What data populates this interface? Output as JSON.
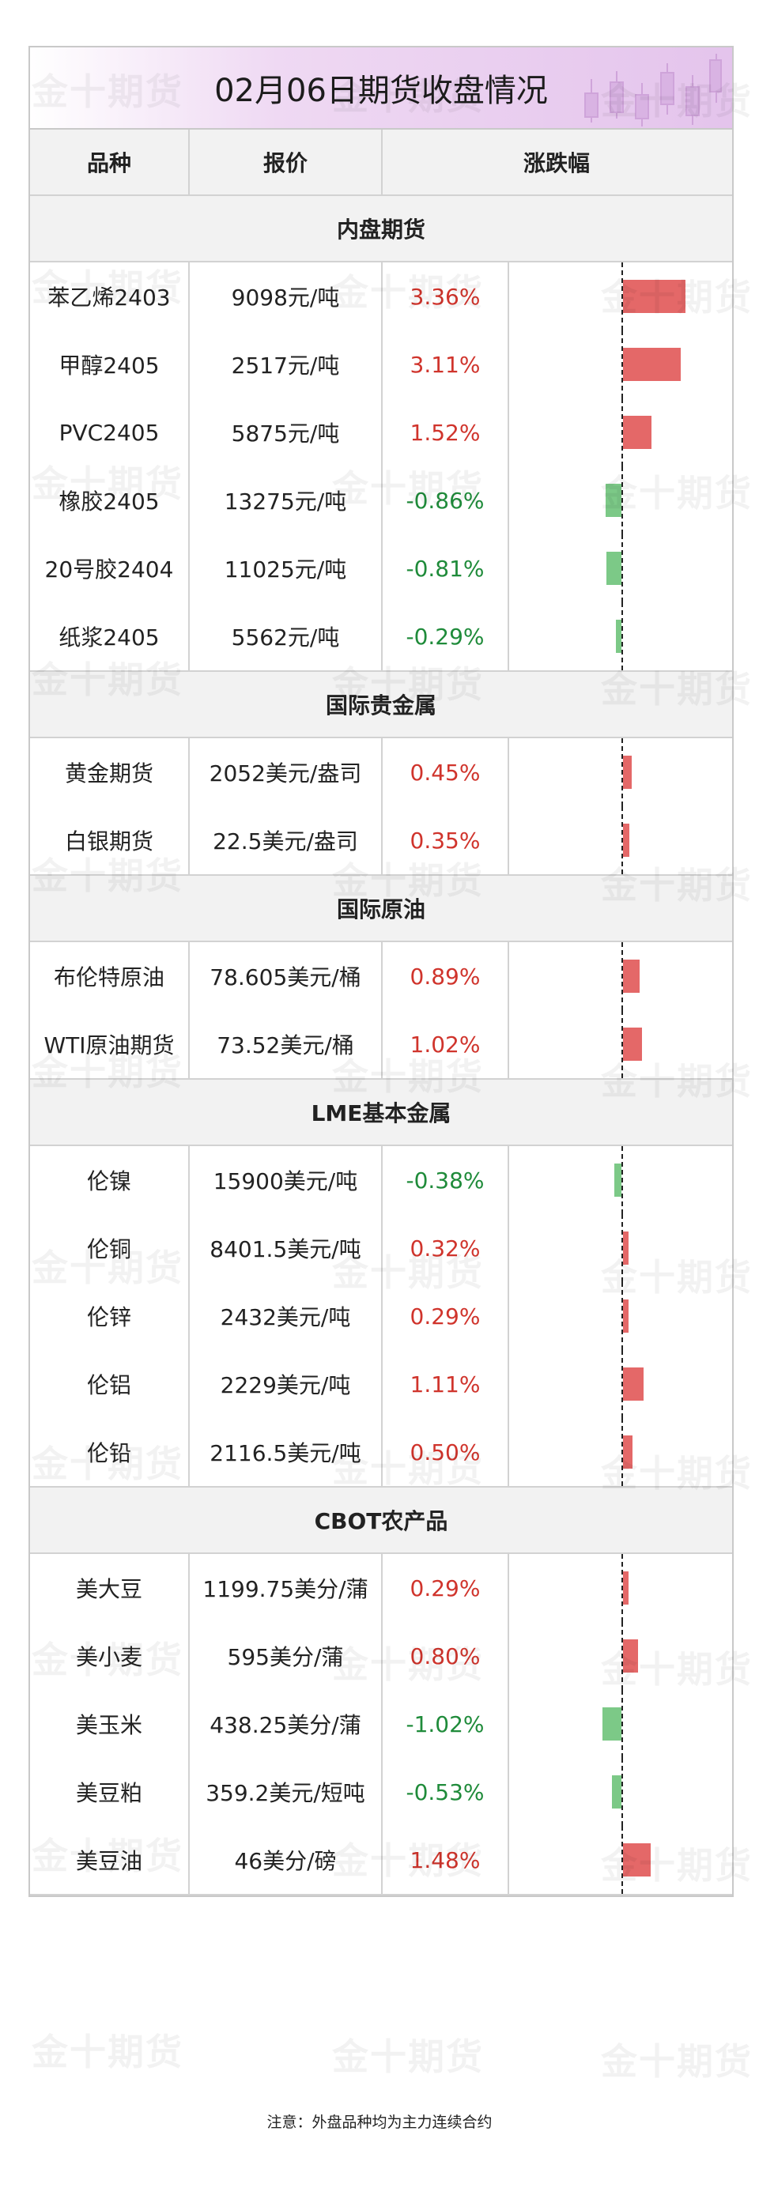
{
  "title": "02月06日期货收盘情况",
  "watermark": "金十期货",
  "headers": {
    "name": "品种",
    "price": "报价",
    "change": "涨跌幅"
  },
  "sections": [
    {
      "title": "内盘期货",
      "rows": [
        {
          "name": "苯乙烯2403",
          "price": "9098元/吨",
          "change": "3.36%",
          "pct": 3.36
        },
        {
          "name": "甲醇2405",
          "price": "2517元/吨",
          "change": "3.11%",
          "pct": 3.11
        },
        {
          "name": "PVC2405",
          "price": "5875元/吨",
          "change": "1.52%",
          "pct": 1.52
        },
        {
          "name": "橡胶2405",
          "price": "13275元/吨",
          "change": "-0.86%",
          "pct": -0.86
        },
        {
          "name": "20号胶2404",
          "price": "11025元/吨",
          "change": "-0.81%",
          "pct": -0.81
        },
        {
          "name": "纸浆2405",
          "price": "5562元/吨",
          "change": "-0.29%",
          "pct": -0.29
        }
      ]
    },
    {
      "title": "国际贵金属",
      "rows": [
        {
          "name": "黄金期货",
          "price": "2052美元/盎司",
          "change": "0.45%",
          "pct": 0.45
        },
        {
          "name": "白银期货",
          "price": "22.5美元/盎司",
          "change": "0.35%",
          "pct": 0.35
        }
      ]
    },
    {
      "title": "国际原油",
      "rows": [
        {
          "name": "布伦特原油",
          "price": "78.605美元/桶",
          "change": "0.89%",
          "pct": 0.89
        },
        {
          "name": "WTI原油期货",
          "price": "73.52美元/桶",
          "change": "1.02%",
          "pct": 1.02
        }
      ]
    },
    {
      "title": "LME基本金属",
      "rows": [
        {
          "name": "伦镍",
          "price": "15900美元/吨",
          "change": "-0.38%",
          "pct": -0.38
        },
        {
          "name": "伦铜",
          "price": "8401.5美元/吨",
          "change": "0.32%",
          "pct": 0.32
        },
        {
          "name": "伦锌",
          "price": "2432美元/吨",
          "change": "0.29%",
          "pct": 0.29
        },
        {
          "name": "伦铝",
          "price": "2229美元/吨",
          "change": "1.11%",
          "pct": 1.11
        },
        {
          "name": "伦铅",
          "price": "2116.5美元/吨",
          "change": "0.50%",
          "pct": 0.5
        }
      ]
    },
    {
      "title": "CBOT农产品",
      "rows": [
        {
          "name": "美大豆",
          "price": "1199.75美分/蒲",
          "change": "0.29%",
          "pct": 0.29
        },
        {
          "name": "美小麦",
          "price": "595美分/蒲",
          "change": "0.80%",
          "pct": 0.8
        },
        {
          "name": "美玉米",
          "price": "438.25美分/蒲",
          "change": "-1.02%",
          "pct": -1.02
        },
        {
          "name": "美豆粕",
          "price": "359.2美元/短吨",
          "change": "-0.53%",
          "pct": -0.53
        },
        {
          "name": "美豆油",
          "price": "46美分/磅",
          "change": "1.48%",
          "pct": 1.48
        }
      ]
    }
  ],
  "note": "注意：外盘品种均为主力连续合约",
  "colors": {
    "up": "#d0342c",
    "down": "#1f8b3a",
    "up_bar": "#e46868",
    "down_bar": "#7cc987"
  }
}
